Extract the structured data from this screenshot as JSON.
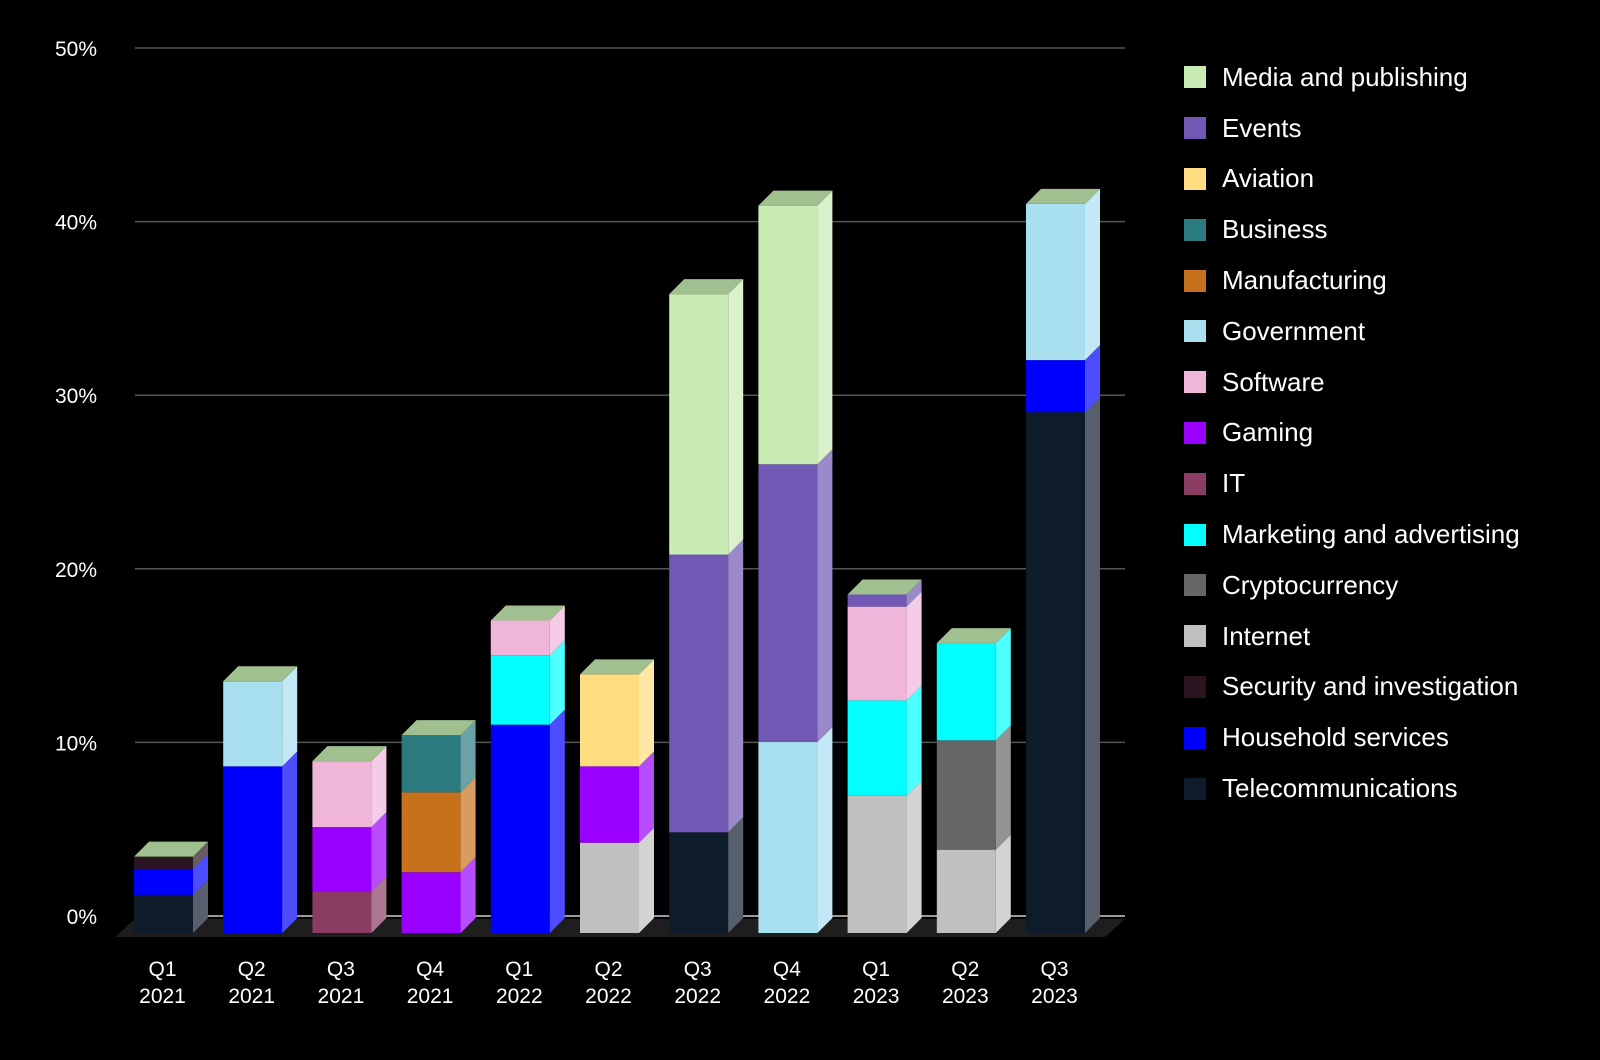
{
  "chart_data": {
    "type": "bar",
    "stacked": true,
    "style": "3d",
    "title": "",
    "xlabel": "",
    "ylabel": "",
    "ylim": [
      0,
      50
    ],
    "yticks": [
      0,
      10,
      20,
      30,
      40,
      50
    ],
    "ytick_labels": [
      "0%",
      "10%",
      "20%",
      "30%",
      "40%",
      "50%"
    ],
    "grid": true,
    "legend_position": "right",
    "categories": [
      [
        "Q1",
        "2021"
      ],
      [
        "Q2",
        "2021"
      ],
      [
        "Q3",
        "2021"
      ],
      [
        "Q4",
        "2021"
      ],
      [
        "Q1",
        "2022"
      ],
      [
        "Q2",
        "2022"
      ],
      [
        "Q3",
        "2022"
      ],
      [
        "Q4",
        "2022"
      ],
      [
        "Q1",
        "2023"
      ],
      [
        "Q2",
        "2023"
      ],
      [
        "Q3",
        "2023"
      ]
    ],
    "series": [
      {
        "name": "Telecommunications",
        "color": "#0d1b2b",
        "values": [
          2.2,
          0,
          0,
          0,
          0,
          0,
          5.8,
          0,
          0,
          0,
          30.0
        ]
      },
      {
        "name": "Household services",
        "color": "#0000ff",
        "values": [
          1.5,
          9.6,
          0,
          0,
          12.0,
          0,
          0,
          0,
          0,
          0,
          3.0
        ]
      },
      {
        "name": "Security and investigation",
        "color": "#2a1520",
        "values": [
          0.7,
          0,
          0,
          0,
          0,
          0,
          0,
          0,
          0,
          0,
          0
        ]
      },
      {
        "name": "Internet",
        "color": "#c0c0c0",
        "values": [
          0,
          0,
          0,
          0,
          0,
          5.2,
          0,
          0,
          7.9,
          4.8,
          0
        ]
      },
      {
        "name": "Cryptocurrency",
        "color": "#666666",
        "values": [
          0,
          0,
          0,
          0,
          0,
          0,
          0,
          0,
          0,
          6.3,
          0
        ]
      },
      {
        "name": "Marketing and advertising",
        "color": "#00ffff",
        "values": [
          0,
          0,
          0,
          0,
          4.0,
          0,
          0,
          0,
          5.5,
          5.6,
          0
        ]
      },
      {
        "name": "IT",
        "color": "#8a3c62",
        "values": [
          0,
          0,
          2.4,
          0,
          0,
          0,
          0,
          0,
          0,
          0,
          0
        ]
      },
      {
        "name": "Gaming",
        "color": "#9900ff",
        "values": [
          0,
          0,
          3.7,
          3.5,
          0,
          4.4,
          0,
          0,
          0,
          0,
          0
        ]
      },
      {
        "name": "Software",
        "color": "#f0b6da",
        "values": [
          0,
          0,
          3.8,
          0,
          2.0,
          0,
          0,
          0,
          5.4,
          0,
          0
        ]
      },
      {
        "name": "Government",
        "color": "#a8e0f0",
        "values": [
          0,
          4.9,
          0,
          0,
          0,
          0,
          0,
          11.0,
          0,
          0,
          9.0
        ]
      },
      {
        "name": "Manufacturing",
        "color": "#c8711c",
        "values": [
          0,
          0,
          0,
          4.6,
          0,
          0,
          0,
          0,
          0,
          0,
          0
        ]
      },
      {
        "name": "Business",
        "color": "#2a7a80",
        "values": [
          0,
          0,
          0,
          3.3,
          0,
          0,
          0,
          0,
          0,
          0,
          0
        ]
      },
      {
        "name": "Aviation",
        "color": "#ffdc80",
        "values": [
          0,
          0,
          0,
          0,
          0,
          5.3,
          0,
          0,
          0,
          0,
          0
        ]
      },
      {
        "name": "Events",
        "color": "#7058b4",
        "values": [
          0,
          0,
          0,
          0,
          0,
          0,
          16.0,
          16.0,
          0.7,
          0,
          0
        ]
      },
      {
        "name": "Media and publishing",
        "color": "#c8ecb4",
        "values": [
          0,
          0,
          0,
          0,
          0,
          0,
          15.0,
          14.9,
          0,
          0,
          0
        ]
      }
    ],
    "legend_order": [
      "Media and publishing",
      "Events",
      "Aviation",
      "Business",
      "Manufacturing",
      "Government",
      "Software",
      "Gaming",
      "IT",
      "Marketing and advertising",
      "Cryptocurrency",
      "Internet",
      "Security and investigation",
      "Household services",
      "Telecommunications"
    ],
    "top_cap_color": "#a0c090"
  }
}
